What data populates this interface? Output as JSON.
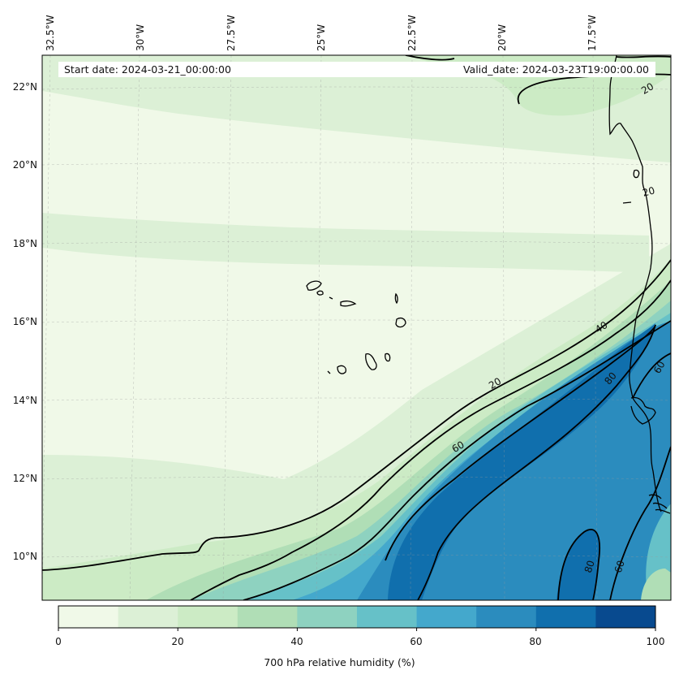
{
  "map": {
    "start_date": "Start date: 2024-03-21_00:00:00",
    "valid_date": "Valid_date: 2024-03-23T19:00:00.00",
    "lon_labels": [
      "32.5°W",
      "30°W",
      "27.5°W",
      "25°W",
      "22.5°W",
      "20°W",
      "17.5°W"
    ],
    "lat_labels": [
      "22°N",
      "20°N",
      "18°N",
      "16°N",
      "14°N",
      "12°N",
      "10°N"
    ],
    "contour_labels": {
      "c20_a": "20",
      "c20_b": "20",
      "c20_c": "20",
      "c40": "40",
      "c60_a": "60",
      "c60_b": "60",
      "c60_c": "60",
      "c80_a": "80",
      "c80_b": "80"
    }
  },
  "colorbar": {
    "title": "700 hPa relative humidity (%)",
    "ticks": [
      "0",
      "20",
      "40",
      "60",
      "80",
      "100"
    ],
    "colors": [
      "#f0f9e8",
      "#dcf0d6",
      "#ccebc5",
      "#b0deb6",
      "#8ed2c0",
      "#66c1c8",
      "#44a8cc",
      "#2b8cbe",
      "#106fad",
      "#084a8f"
    ]
  }
}
